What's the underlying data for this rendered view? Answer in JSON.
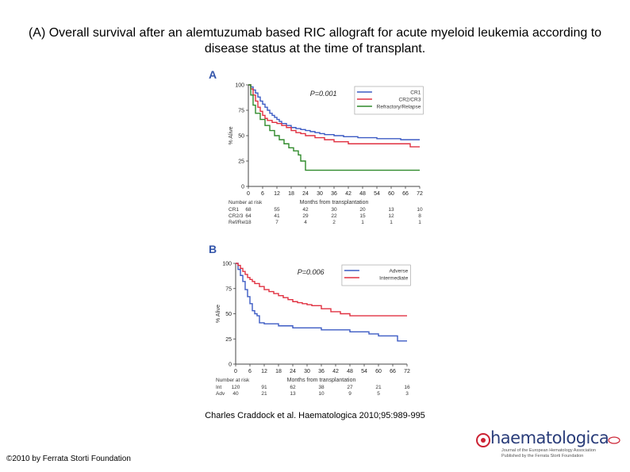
{
  "title": "(A) Overall survival after an alemtuzumab based RIC allograft for acute myeloid leukemia according to disease status at the time of transplant.",
  "citation": "Charles Craddock et al. Haematologica 2010;95:989-995",
  "copyright": "©2010 by Ferrata Storti Foundation",
  "logo": {
    "wordmark": "haematologica",
    "subtitle_line1": "Journal of the European Hematology Association",
    "subtitle_line2": "Published by the Ferrata Storti Foundation"
  },
  "chart_data": [
    {
      "panel": "A",
      "type": "line",
      "step": true,
      "p_value": "P=0.001",
      "xlabel": "Months from transplantation",
      "ylabel": "% Alive",
      "xlim": [
        0,
        72
      ],
      "ylim": [
        0,
        100
      ],
      "xticks": [
        0,
        6,
        12,
        18,
        24,
        30,
        36,
        42,
        48,
        54,
        60,
        66,
        72
      ],
      "yticks": [
        0,
        25,
        50,
        75,
        100
      ],
      "series": [
        {
          "name": "CR1",
          "color": "#3c5bc4",
          "x": [
            0,
            1,
            2,
            3,
            4,
            5,
            6,
            7,
            8,
            9,
            10,
            11,
            12,
            13,
            14,
            16,
            18,
            20,
            22,
            24,
            26,
            28,
            30,
            32,
            36,
            40,
            46,
            54,
            64,
            72
          ],
          "y": [
            100,
            98,
            95,
            92,
            88,
            84,
            81,
            78,
            75,
            72,
            70,
            68,
            66,
            64,
            62,
            60,
            58,
            57,
            56,
            55,
            54,
            53,
            52,
            51,
            50,
            49,
            48,
            47,
            46,
            46
          ]
        },
        {
          "name": "CR2/CR3",
          "color": "#e03040",
          "x": [
            0,
            1,
            2,
            3,
            4,
            5,
            6,
            7,
            8,
            10,
            12,
            14,
            16,
            18,
            20,
            22,
            24,
            28,
            32,
            36,
            42,
            48,
            66,
            68,
            72
          ],
          "y": [
            100,
            96,
            90,
            84,
            78,
            74,
            70,
            67,
            65,
            63,
            62,
            60,
            58,
            55,
            53,
            52,
            50,
            48,
            46,
            44,
            42,
            42,
            42,
            39,
            39
          ]
        },
        {
          "name": "Refractory/Relapse",
          "color": "#2f8a2a",
          "x": [
            0,
            1,
            2,
            3,
            5,
            7,
            9,
            11,
            13,
            15,
            17,
            19,
            21,
            22,
            24,
            30,
            72
          ],
          "y": [
            100,
            90,
            80,
            72,
            66,
            60,
            55,
            50,
            46,
            42,
            38,
            35,
            31,
            25,
            16,
            16,
            16
          ]
        }
      ],
      "risk_table": {
        "header": "Number at risk",
        "rows": [
          {
            "label": "CR1",
            "values": [
              "68",
              "55",
              "42",
              "30",
              "20",
              "13",
              "10"
            ]
          },
          {
            "label": "CR2/3",
            "values": [
              "64",
              "41",
              "29",
              "22",
              "15",
              "12",
              "8"
            ]
          },
          {
            "label": "Ref/Rel",
            "values": [
              "18",
              "7",
              "4",
              "2",
              "1",
              "1",
              "1"
            ]
          }
        ],
        "months": [
          0,
          12,
          24,
          36,
          48,
          60,
          72
        ]
      }
    },
    {
      "panel": "B",
      "type": "line",
      "step": true,
      "p_value": "P=0.006",
      "xlabel": "Months from transplantation",
      "ylabel": "% Alive",
      "xlim": [
        0,
        72
      ],
      "ylim": [
        0,
        100
      ],
      "xticks": [
        0,
        6,
        12,
        18,
        24,
        30,
        36,
        42,
        48,
        54,
        60,
        66,
        72
      ],
      "yticks": [
        0,
        25,
        50,
        75,
        100
      ],
      "series": [
        {
          "name": "Adverse",
          "color": "#3c5bc4",
          "x": [
            0,
            1,
            2,
            3,
            4,
            5,
            6,
            7,
            8,
            9,
            10,
            12,
            14,
            18,
            24,
            36,
            48,
            56,
            60,
            68,
            72
          ],
          "y": [
            100,
            94,
            88,
            82,
            74,
            67,
            60,
            53,
            50,
            48,
            41,
            40,
            40,
            38,
            36,
            34,
            32,
            30,
            28,
            23,
            23
          ]
        },
        {
          "name": "Intermediate",
          "color": "#e03040",
          "x": [
            0,
            1,
            2,
            3,
            4,
            5,
            6,
            7,
            8,
            10,
            12,
            14,
            16,
            18,
            20,
            22,
            24,
            26,
            28,
            30,
            32,
            36,
            40,
            44,
            48,
            54,
            60,
            66,
            72
          ],
          "y": [
            100,
            98,
            95,
            92,
            89,
            86,
            84,
            82,
            80,
            77,
            74,
            72,
            70,
            68,
            66,
            64,
            62,
            61,
            60,
            59,
            58,
            55,
            52,
            50,
            48,
            48,
            48,
            48,
            48
          ]
        }
      ],
      "risk_table": {
        "header": "Number at risk",
        "rows": [
          {
            "label": "Int",
            "values": [
              "120",
              "91",
              "62",
              "38",
              "27",
              "21",
              "16"
            ]
          },
          {
            "label": "Adv",
            "values": [
              "40",
              "21",
              "13",
              "10",
              "9",
              "5",
              "3"
            ]
          }
        ],
        "months": [
          0,
          12,
          24,
          36,
          48,
          60,
          72
        ]
      }
    }
  ]
}
